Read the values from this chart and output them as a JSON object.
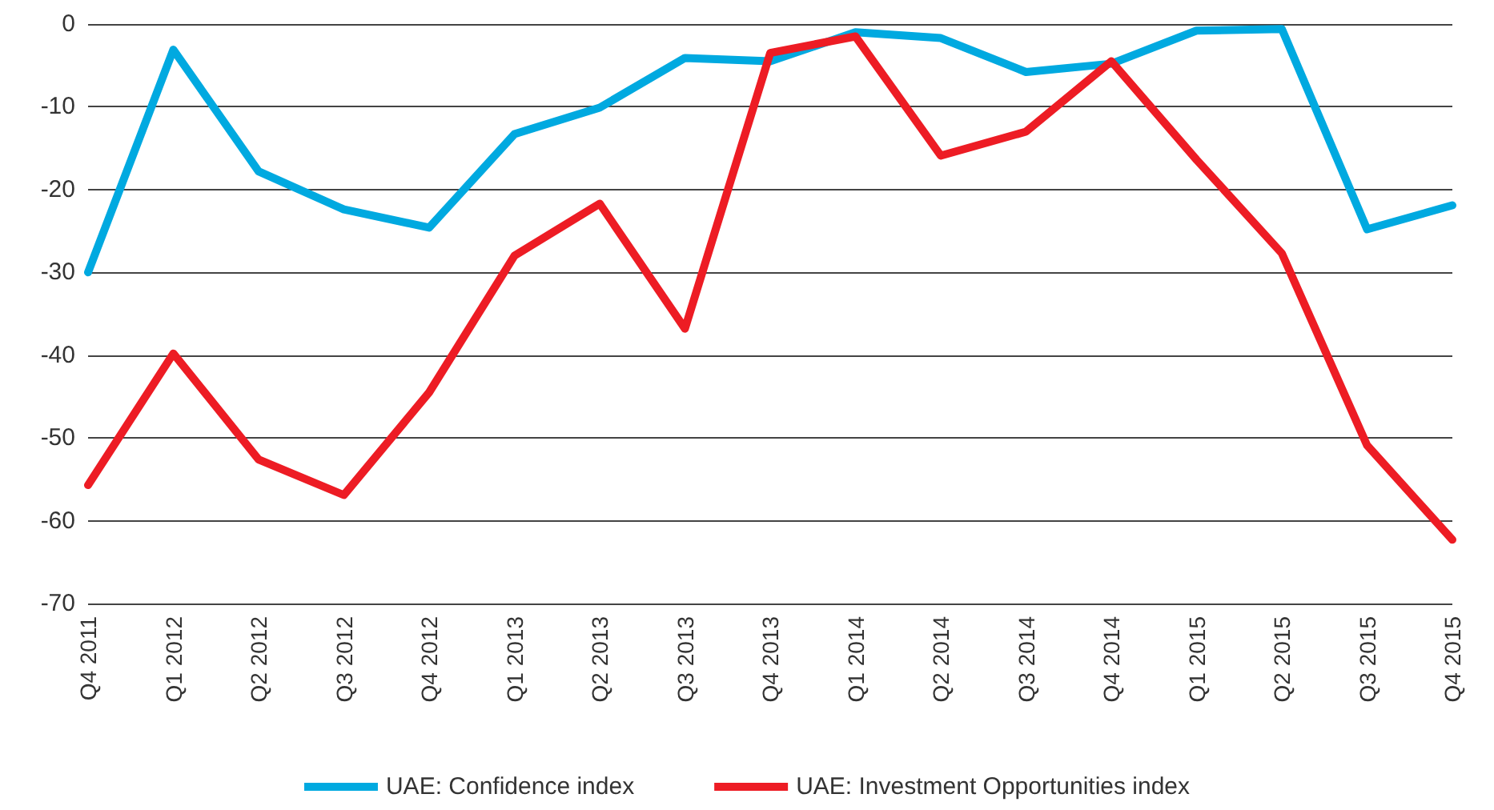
{
  "chart_data": {
    "type": "line",
    "categories": [
      "Q4 2011",
      "Q1 2012",
      "Q2 2012",
      "Q3 2012",
      "Q4 2012",
      "Q1 2013",
      "Q2 2013",
      "Q3 2013",
      "Q4 2013",
      "Q1 2014",
      "Q2 2014",
      "Q3 2014",
      "Q4 2014",
      "Q1 2015",
      "Q2 2015",
      "Q3 2015",
      "Q4 2015"
    ],
    "series": [
      {
        "name": "UAE: Confidence index",
        "color": "#00a9e0",
        "values": [
          -30,
          -3.1,
          -17.8,
          -22.4,
          -24.6,
          -13.3,
          -10.1,
          -4.1,
          -4.5,
          -1,
          -1.7,
          -5.8,
          -4.8,
          -0.8,
          -0.6,
          -24.8,
          -21.9
        ]
      },
      {
        "name": "UAE: Investment Opportunities index",
        "color": "#ed1c24",
        "values": [
          -55.7,
          -39.8,
          -52.6,
          -56.9,
          -44.5,
          -28,
          -21.7,
          -36.8,
          -3.5,
          -1.5,
          -15.9,
          -13,
          -4.5,
          -16.4,
          -27.7,
          -50.9,
          -62.3
        ]
      }
    ],
    "ylim": [
      -70,
      0
    ],
    "yticks": [
      -70,
      -60,
      -50,
      -40,
      -30,
      -20,
      -10,
      0
    ],
    "grid": "y",
    "legend": "bottom",
    "marker": "none",
    "line_style": "solid"
  }
}
